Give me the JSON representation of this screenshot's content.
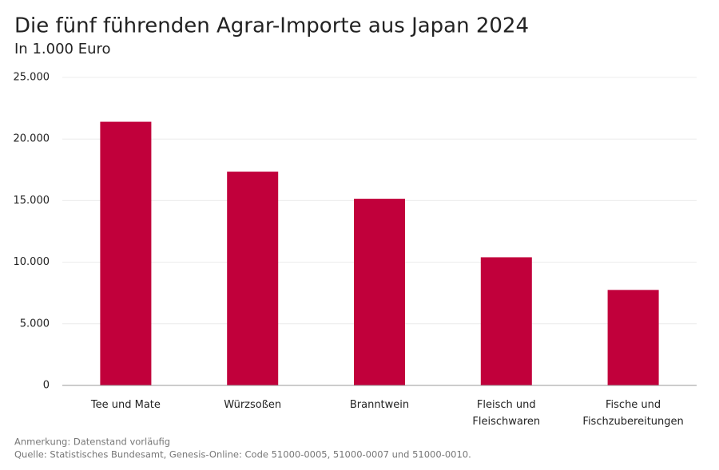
{
  "chart_data": {
    "type": "bar",
    "title": "Die fünf führenden Agrar-Importe aus Japan 2024",
    "subtitle": "In 1.000 Euro",
    "categories": [
      "Tee und Mate",
      "Würzsoßen",
      "Branntwein",
      "Fleisch und Fleischwaren",
      "Fische und Fischzubereitungen"
    ],
    "values": [
      21400,
      17350,
      15150,
      10400,
      7750
    ],
    "color": "#c1003b",
    "ylim": [
      0,
      25000
    ],
    "yticks": [
      0,
      {
        "value": 5000,
        "label": "5.000"
      },
      {
        "value": 10000,
        "label": "10.000"
      },
      {
        "value": 15000,
        "label": "15.000"
      },
      {
        "value": 20000,
        "label": "20.000"
      },
      {
        "value": 25000,
        "label": "25.000"
      }
    ],
    "grid": true,
    "notes": [
      "Anmerkung: Datenstand vorläufig",
      "Quelle: Statistisches Bundesamt, Genesis-Online: Code 51000-0005, 51000-0007 und 51000-0010."
    ]
  }
}
